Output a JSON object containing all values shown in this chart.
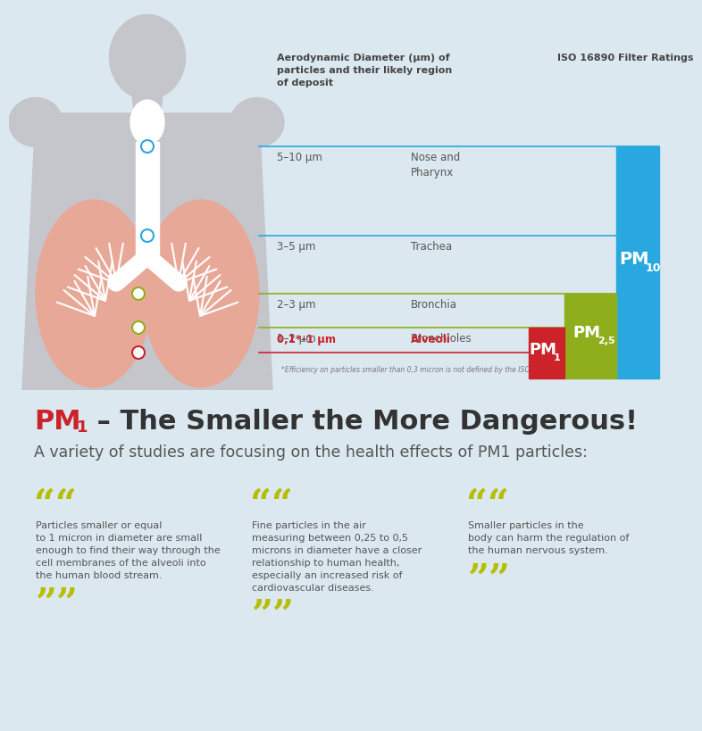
{
  "bg_top_color": "#dce8f0",
  "bg_bot_color": "#ffffff",
  "body_color": "#c5c5cc",
  "lung_color": "#e8a898",
  "header_col1": "Aerodynamic Diameter (µm) of\nparticles and their likely region\nof deposit",
  "header_col2": "ISO 16890 Filter Ratings",
  "rows": [
    {
      "range": "5–10 µm",
      "region": "Nose and\nPharynx",
      "dot_color": "#29a8df",
      "line_color": "#29a8df",
      "bold": false,
      "red": false
    },
    {
      "range": "3–5 µm",
      "region": "Trachea",
      "dot_color": "#29a8df",
      "line_color": "#29a8df",
      "bold": false,
      "red": false
    },
    {
      "range": "2–3 µm",
      "region": "Bronchia",
      "dot_color": "#8fae1b",
      "line_color": "#8fae1b",
      "bold": false,
      "red": false
    },
    {
      "range": "1–2 µm",
      "region": "Bronchioles",
      "dot_color": "#8fae1b",
      "line_color": "#8fae1b",
      "bold": false,
      "red": false
    },
    {
      "range": "0,1*–1 µm",
      "region": "Alveoli",
      "dot_color": "#cc2229",
      "line_color": "#cc2229",
      "bold": true,
      "red": true
    }
  ],
  "note": "*Efficiency on particles smaller than 0,3 micron is not defined by the ISO",
  "pm10_color": "#29a8df",
  "pm25_color": "#8fae1b",
  "pm1_color": "#cc2229",
  "quote_color": "#b5be00",
  "text_dark": "#444444",
  "title_rest": " – The Smaller the More Dangerous!",
  "subtitle": "A variety of studies are focusing on the health effects of PM1 particles:",
  "quotes": [
    "Particles smaller or equal\nto 1 micron in diameter are small\nenough to find their way through the\ncell membranes of the alveoli into\nthe human blood stream.",
    "Fine particles in the air\nmeasuring between 0,25 to 0,5\nmicrons in diameter have a closer\nrelationship to human health,\nespecially an increased risk of\ncardiovascular diseases.",
    "Smaller particles in the\nbody can harm the regulation of\nthe human nervous system."
  ]
}
